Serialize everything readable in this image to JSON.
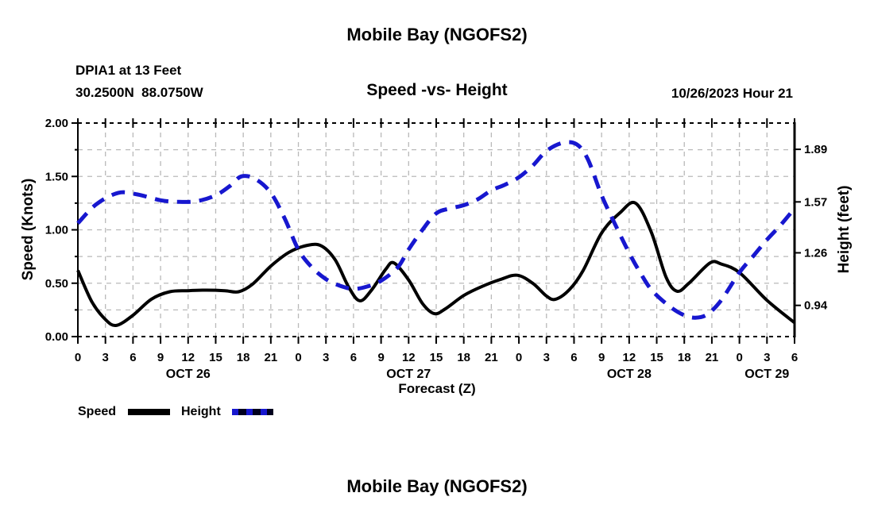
{
  "header": {
    "title": "Mobile Bay (NGOFS2)",
    "station_line1": "DPIA1 at 13 Feet",
    "station_line2": "30.2500N  88.0750W",
    "subtitle": "Speed -vs- Height",
    "datetime_label": "10/26/2023 Hour 21"
  },
  "footer": {
    "title": "Mobile Bay (NGOFS2)"
  },
  "legend": {
    "speed_label": "Speed",
    "height_label": "Height"
  },
  "colors": {
    "speed_line": "#000000",
    "height_line": "#1717cf",
    "grid": "#b9b9b9",
    "frame": "#000000",
    "background": "#ffffff"
  },
  "chart_data": {
    "type": "line",
    "title": "Speed -vs- Height",
    "xlabel": "Forecast (Z)",
    "ylabel_left": "Speed (Knots)",
    "ylabel_right": "Height (feet)",
    "x_range_hours": [
      0,
      78
    ],
    "x_tick_step_hours": 3,
    "x_hour_tick_labels": [
      "0",
      "3",
      "6",
      "9",
      "12",
      "15",
      "18",
      "21",
      "0",
      "3",
      "6",
      "9",
      "12",
      "15",
      "18",
      "21",
      "0",
      "3",
      "6",
      "9",
      "12",
      "15",
      "18",
      "21",
      "0",
      "3",
      "6"
    ],
    "x_date_labels": [
      {
        "label": "OCT 26",
        "hour": 12
      },
      {
        "label": "OCT 27",
        "hour": 36
      },
      {
        "label": "OCT 28",
        "hour": 60
      },
      {
        "label": "OCT 29",
        "hour": 75
      }
    ],
    "y_left_range": [
      0.0,
      2.0
    ],
    "y_left_tick_labels": [
      "0.00",
      "0.50",
      "1.00",
      "1.50",
      "2.00"
    ],
    "y_left_minor_step": 0.25,
    "y_right_range": [
      0.75,
      2.05
    ],
    "y_right_tick_labels": [
      "0.94",
      "1.26",
      "1.57",
      "1.89"
    ],
    "grid": true,
    "legend_position": "bottom-left",
    "series": [
      {
        "name": "Speed",
        "axis": "left",
        "unit": "Knots",
        "color": "#000000",
        "line_style": "solid",
        "points": [
          [
            0,
            0.62
          ],
          [
            1.5,
            0.33
          ],
          [
            3,
            0.16
          ],
          [
            4.2,
            0.105
          ],
          [
            6,
            0.2
          ],
          [
            8,
            0.35
          ],
          [
            10,
            0.42
          ],
          [
            12,
            0.43
          ],
          [
            14,
            0.435
          ],
          [
            16,
            0.43
          ],
          [
            17.5,
            0.42
          ],
          [
            19,
            0.49
          ],
          [
            21,
            0.66
          ],
          [
            23,
            0.79
          ],
          [
            25,
            0.855
          ],
          [
            26.5,
            0.85
          ],
          [
            28,
            0.72
          ],
          [
            29.5,
            0.46
          ],
          [
            30.7,
            0.335
          ],
          [
            32,
            0.44
          ],
          [
            33.5,
            0.63
          ],
          [
            34.4,
            0.69
          ],
          [
            36,
            0.53
          ],
          [
            37.5,
            0.31
          ],
          [
            38.8,
            0.215
          ],
          [
            40,
            0.26
          ],
          [
            42,
            0.385
          ],
          [
            44,
            0.47
          ],
          [
            46,
            0.535
          ],
          [
            47.8,
            0.575
          ],
          [
            49.5,
            0.5
          ],
          [
            51,
            0.38
          ],
          [
            52,
            0.35
          ],
          [
            53.5,
            0.44
          ],
          [
            55,
            0.62
          ],
          [
            57,
            0.97
          ],
          [
            59,
            1.16
          ],
          [
            60.7,
            1.25
          ],
          [
            62.4,
            0.98
          ],
          [
            64,
            0.56
          ],
          [
            65.2,
            0.425
          ],
          [
            66.5,
            0.5
          ],
          [
            68.8,
            0.69
          ],
          [
            70,
            0.68
          ],
          [
            72,
            0.6
          ],
          [
            75,
            0.34
          ],
          [
            78,
            0.13
          ]
        ]
      },
      {
        "name": "Height",
        "axis": "right",
        "unit": "feet",
        "color": "#1717cf",
        "line_style": "dashed",
        "points": [
          [
            0,
            1.44
          ],
          [
            2,
            1.555
          ],
          [
            4.4,
            1.625
          ],
          [
            6.5,
            1.615
          ],
          [
            9,
            1.58
          ],
          [
            11,
            1.57
          ],
          [
            13,
            1.575
          ],
          [
            15,
            1.61
          ],
          [
            16.5,
            1.665
          ],
          [
            17.8,
            1.725
          ],
          [
            19.3,
            1.71
          ],
          [
            21,
            1.625
          ],
          [
            22.5,
            1.47
          ],
          [
            24,
            1.28
          ],
          [
            25.5,
            1.17
          ],
          [
            27,
            1.1
          ],
          [
            28.5,
            1.06
          ],
          [
            30,
            1.04
          ],
          [
            31.5,
            1.055
          ],
          [
            33,
            1.09
          ],
          [
            34.8,
            1.17
          ],
          [
            36,
            1.28
          ],
          [
            37.5,
            1.4
          ],
          [
            39,
            1.5
          ],
          [
            40.5,
            1.53
          ],
          [
            42,
            1.55
          ],
          [
            43.5,
            1.585
          ],
          [
            45,
            1.64
          ],
          [
            46.5,
            1.675
          ],
          [
            48,
            1.72
          ],
          [
            49.5,
            1.79
          ],
          [
            51,
            1.88
          ],
          [
            52.8,
            1.93
          ],
          [
            54.3,
            1.92
          ],
          [
            55.5,
            1.83
          ],
          [
            57,
            1.61
          ],
          [
            58.5,
            1.43
          ],
          [
            60,
            1.26
          ],
          [
            61.2,
            1.14
          ],
          [
            62.5,
            1.03
          ],
          [
            64.5,
            0.93
          ],
          [
            66,
            0.88
          ],
          [
            67.2,
            0.865
          ],
          [
            68.5,
            0.885
          ],
          [
            70,
            0.97
          ],
          [
            72,
            1.14
          ],
          [
            73.5,
            1.24
          ],
          [
            75,
            1.34
          ],
          [
            76.5,
            1.43
          ],
          [
            78,
            1.53
          ]
        ]
      }
    ]
  }
}
